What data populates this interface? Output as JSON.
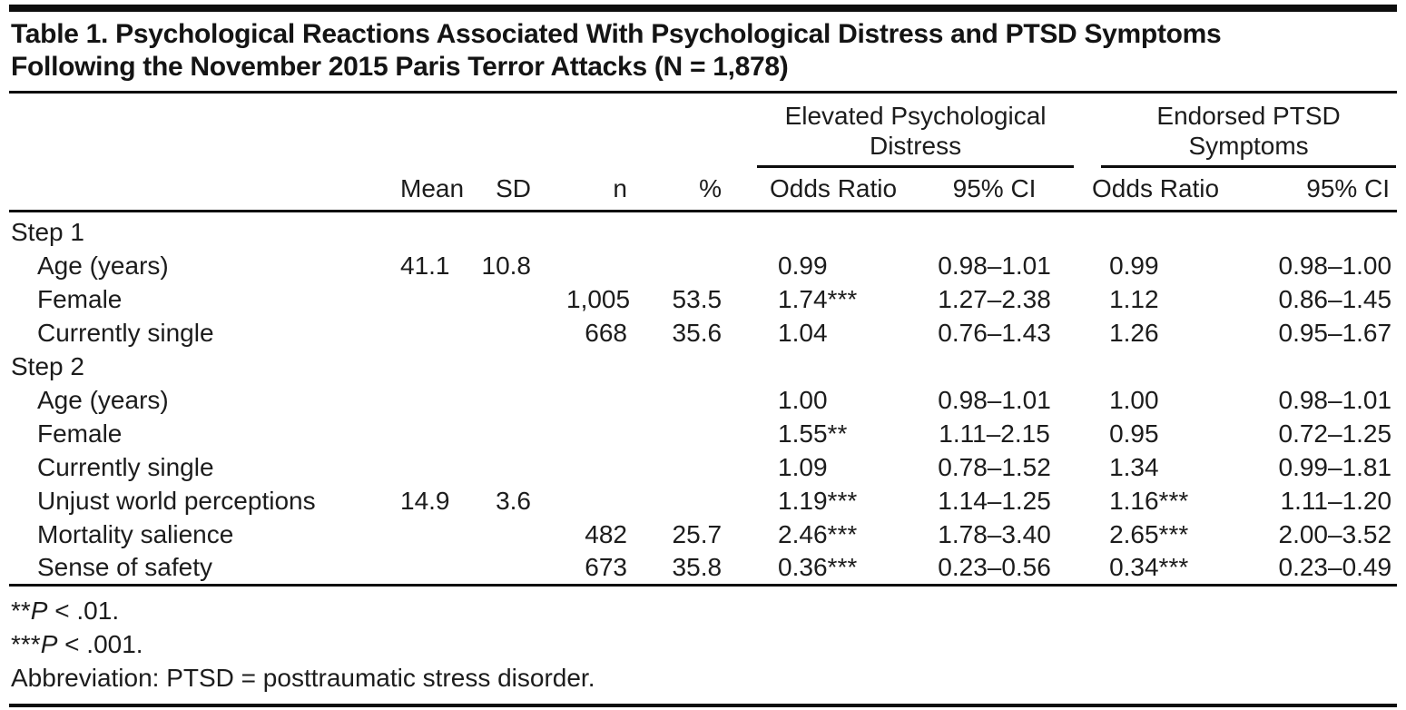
{
  "title": {
    "line1": "Table 1. Psychological Reactions Associated With Psychological Distress and PTSD Symptoms",
    "line2": "Following the November 2015 Paris Terror Attacks (N = 1,878)"
  },
  "table": {
    "groups": [
      {
        "line1": "Elevated Psychological",
        "line2": "Distress"
      },
      {
        "line1": "Endorsed PTSD",
        "line2": "Symptoms"
      }
    ],
    "columns": [
      "Mean",
      "SD",
      "n",
      "%",
      "Odds Ratio",
      "95% CI",
      "Odds Ratio",
      "95% CI"
    ],
    "rows": [
      {
        "label": "Step 1",
        "indent": false,
        "cells": [
          "",
          "",
          "",
          "",
          "",
          "",
          "",
          ""
        ]
      },
      {
        "label": "Age (years)",
        "indent": true,
        "cells": [
          "41.1",
          "10.8",
          "",
          "",
          "0.99",
          "0.98–1.01",
          "0.99",
          "0.98–1.00"
        ]
      },
      {
        "label": "Female",
        "indent": true,
        "cells": [
          "",
          "",
          "1,005",
          "53.5",
          "1.74***",
          "1.27–2.38",
          "1.12",
          "0.86–1.45"
        ]
      },
      {
        "label": "Currently single",
        "indent": true,
        "cells": [
          "",
          "",
          "668",
          "35.6",
          "1.04",
          "0.76–1.43",
          "1.26",
          "0.95–1.67"
        ]
      },
      {
        "label": "Step 2",
        "indent": false,
        "cells": [
          "",
          "",
          "",
          "",
          "",
          "",
          "",
          ""
        ]
      },
      {
        "label": "Age (years)",
        "indent": true,
        "cells": [
          "",
          "",
          "",
          "",
          "1.00",
          "0.98–1.01",
          "1.00",
          "0.98–1.01"
        ]
      },
      {
        "label": "Female",
        "indent": true,
        "cells": [
          "",
          "",
          "",
          "",
          "1.55**",
          "1.11–2.15",
          "0.95",
          "0.72–1.25"
        ]
      },
      {
        "label": "Currently single",
        "indent": true,
        "cells": [
          "",
          "",
          "",
          "",
          "1.09",
          "0.78–1.52",
          "1.34",
          "0.99–1.81"
        ]
      },
      {
        "label": "Unjust world perceptions",
        "indent": true,
        "cells": [
          "14.9",
          "3.6",
          "",
          "",
          "1.19***",
          "1.14–1.25",
          "1.16***",
          "1.11–1.20"
        ]
      },
      {
        "label": "Mortality salience",
        "indent": true,
        "cells": [
          "",
          "",
          "482",
          "25.7",
          "2.46***",
          "1.78–3.40",
          "2.65***",
          "2.00–3.52"
        ]
      },
      {
        "label": "Sense of safety",
        "indent": true,
        "cells": [
          "",
          "",
          "673",
          "35.8",
          "0.36***",
          "0.23–0.56",
          "0.34***",
          "0.23–0.49"
        ]
      }
    ]
  },
  "footnotes": [
    {
      "pre": "**",
      "italic": "P",
      "post": " < .01."
    },
    {
      "pre": "***",
      "italic": "P",
      "post": " < .001."
    },
    {
      "pre": "",
      "italic": "",
      "post": "Abbreviation: PTSD = posttraumatic stress disorder."
    }
  ]
}
